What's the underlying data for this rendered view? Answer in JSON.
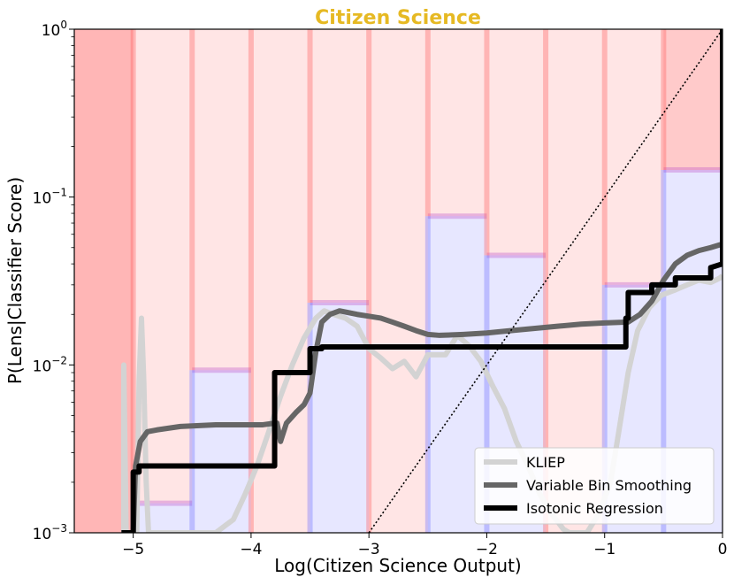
{
  "chart_data": {
    "type": "line",
    "title": "Citizen Science",
    "title_color": "#e6b923",
    "xlabel": "Log(Citizen Science Output)",
    "ylabel": "P(Lens|Classifier Score)",
    "xlim": [
      -5.5,
      0
    ],
    "ylim": [
      0.001,
      1
    ],
    "yscale": "log",
    "grid": false,
    "legend_position": "bottom-right",
    "x_ticks": [
      {
        "value": -5,
        "label": "−5"
      },
      {
        "value": -4,
        "label": "−4"
      },
      {
        "value": -3,
        "label": "−3"
      },
      {
        "value": -2,
        "label": "−2"
      },
      {
        "value": -1,
        "label": "−1"
      },
      {
        "value": 0,
        "label": "0"
      }
    ],
    "y_ticks": [
      {
        "value": 0.001,
        "base": "10",
        "exp": "−3"
      },
      {
        "value": 0.01,
        "base": "10",
        "exp": "−2"
      },
      {
        "value": 0.1,
        "base": "10",
        "exp": "−1"
      },
      {
        "value": 1,
        "base": "10",
        "exp": "0"
      }
    ],
    "histogram_bins": [
      {
        "x0": -5.5,
        "x1": -5.0,
        "value": 0.0
      },
      {
        "x0": -5.0,
        "x1": -4.5,
        "value": 0.0015
      },
      {
        "x0": -4.5,
        "x1": -4.0,
        "value": 0.0093
      },
      {
        "x0": -4.0,
        "x1": -3.5,
        "value": 0.0
      },
      {
        "x0": -3.5,
        "x1": -3.0,
        "value": 0.0235
      },
      {
        "x0": -3.0,
        "x1": -2.5,
        "value": 0.0
      },
      {
        "x0": -2.5,
        "x1": -2.0,
        "value": 0.077
      },
      {
        "x0": -2.0,
        "x1": -1.5,
        "value": 0.045
      },
      {
        "x0": -1.5,
        "x1": -1.0,
        "value": 0.0
      },
      {
        "x0": -1.0,
        "x1": -0.5,
        "value": 0.03
      },
      {
        "x0": -0.5,
        "x1": 0.0,
        "value": 0.145
      }
    ],
    "series": [
      {
        "name": "KLIEP",
        "color": "#d3d3d3",
        "points": [
          [
            -5.08,
            0.001
          ],
          [
            -5.08,
            0.01
          ],
          [
            -5.06,
            0.001
          ],
          [
            -5.04,
            0.001
          ],
          [
            -4.97,
            0.001
          ],
          [
            -4.95,
            0.008
          ],
          [
            -4.93,
            0.019
          ],
          [
            -4.91,
            0.008
          ],
          [
            -4.89,
            0.002
          ],
          [
            -4.87,
            0.001
          ],
          [
            -4.3,
            0.001
          ],
          [
            -4.15,
            0.0012
          ],
          [
            -4.05,
            0.0017
          ],
          [
            -3.95,
            0.0025
          ],
          [
            -3.85,
            0.004
          ],
          [
            -3.75,
            0.0065
          ],
          [
            -3.65,
            0.01
          ],
          [
            -3.55,
            0.0145
          ],
          [
            -3.45,
            0.019
          ],
          [
            -3.38,
            0.021
          ],
          [
            -3.3,
            0.02
          ],
          [
            -3.2,
            0.019
          ],
          [
            -3.1,
            0.017
          ],
          [
            -3.0,
            0.0125
          ],
          [
            -2.9,
            0.011
          ],
          [
            -2.8,
            0.0095
          ],
          [
            -2.7,
            0.0105
          ],
          [
            -2.6,
            0.0085
          ],
          [
            -2.5,
            0.0115
          ],
          [
            -2.35,
            0.0115
          ],
          [
            -2.25,
            0.015
          ],
          [
            -2.15,
            0.013
          ],
          [
            -2.05,
            0.0105
          ],
          [
            -1.95,
            0.0075
          ],
          [
            -1.85,
            0.0055
          ],
          [
            -1.75,
            0.0035
          ],
          [
            -1.65,
            0.0025
          ],
          [
            -1.55,
            0.0017
          ],
          [
            -1.45,
            0.0013
          ],
          [
            -1.35,
            0.00105
          ],
          [
            -1.3,
            0.001
          ],
          [
            -1.15,
            0.001
          ],
          [
            -1.05,
            0.0013
          ],
          [
            -0.95,
            0.002
          ],
          [
            -0.88,
            0.004
          ],
          [
            -0.8,
            0.009
          ],
          [
            -0.72,
            0.016
          ],
          [
            -0.62,
            0.022
          ],
          [
            -0.52,
            0.026
          ],
          [
            -0.4,
            0.028
          ],
          [
            -0.3,
            0.03
          ],
          [
            -0.2,
            0.032
          ],
          [
            -0.1,
            0.031
          ],
          [
            -0.02,
            0.033
          ],
          [
            0.0,
            0.034
          ]
        ]
      },
      {
        "name": "Variable Bin Smoothing",
        "color": "#666666",
        "points": [
          [
            -5.0,
            0.001
          ],
          [
            -4.98,
            0.0025
          ],
          [
            -4.94,
            0.0035
          ],
          [
            -4.88,
            0.004
          ],
          [
            -4.8,
            0.0041
          ],
          [
            -4.6,
            0.0043
          ],
          [
            -4.3,
            0.0044
          ],
          [
            -4.05,
            0.0044
          ],
          [
            -3.9,
            0.0044
          ],
          [
            -3.8,
            0.0045
          ],
          [
            -3.78,
            0.0045
          ],
          [
            -3.75,
            0.0035
          ],
          [
            -3.7,
            0.0045
          ],
          [
            -3.62,
            0.0052
          ],
          [
            -3.55,
            0.0058
          ],
          [
            -3.5,
            0.0068
          ],
          [
            -3.45,
            0.012
          ],
          [
            -3.4,
            0.018
          ],
          [
            -3.33,
            0.02
          ],
          [
            -3.25,
            0.021
          ],
          [
            -3.1,
            0.02
          ],
          [
            -3.0,
            0.0195
          ],
          [
            -2.9,
            0.019
          ],
          [
            -2.8,
            0.018
          ],
          [
            -2.7,
            0.017
          ],
          [
            -2.6,
            0.016
          ],
          [
            -2.5,
            0.0152
          ],
          [
            -2.4,
            0.015
          ],
          [
            -2.2,
            0.0152
          ],
          [
            -2.0,
            0.0155
          ],
          [
            -1.8,
            0.016
          ],
          [
            -1.6,
            0.0165
          ],
          [
            -1.4,
            0.017
          ],
          [
            -1.2,
            0.0175
          ],
          [
            -1.0,
            0.0178
          ],
          [
            -0.8,
            0.018
          ],
          [
            -0.7,
            0.02
          ],
          [
            -0.6,
            0.024
          ],
          [
            -0.5,
            0.032
          ],
          [
            -0.4,
            0.04
          ],
          [
            -0.3,
            0.045
          ],
          [
            -0.2,
            0.048
          ],
          [
            -0.1,
            0.05
          ],
          [
            -0.02,
            0.052
          ],
          [
            0.0,
            0.052
          ]
        ]
      },
      {
        "name": "Isotonic Regression",
        "color": "#000000",
        "points": [
          [
            -5.1,
            0.001
          ],
          [
            -5.0,
            0.001
          ],
          [
            -5.0,
            0.0023
          ],
          [
            -4.95,
            0.0023
          ],
          [
            -4.95,
            0.0025
          ],
          [
            -3.8,
            0.0025
          ],
          [
            -3.8,
            0.009
          ],
          [
            -3.5,
            0.009
          ],
          [
            -3.5,
            0.0125
          ],
          [
            -3.4,
            0.0125
          ],
          [
            -3.4,
            0.0128
          ],
          [
            -0.82,
            0.0128
          ],
          [
            -0.82,
            0.019
          ],
          [
            -0.8,
            0.019
          ],
          [
            -0.8,
            0.027
          ],
          [
            -0.6,
            0.027
          ],
          [
            -0.6,
            0.03
          ],
          [
            -0.4,
            0.03
          ],
          [
            -0.4,
            0.033
          ],
          [
            -0.1,
            0.033
          ],
          [
            -0.1,
            0.038
          ],
          [
            0.0,
            0.04
          ],
          [
            0.0,
            1.0
          ]
        ]
      }
    ],
    "reference_line": {
      "style": "dotted",
      "color": "#000000",
      "points": [
        [
          -3.0,
          0.001
        ],
        [
          0.0,
          1.0
        ]
      ]
    }
  }
}
